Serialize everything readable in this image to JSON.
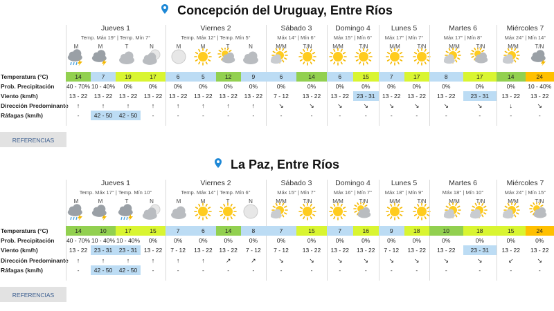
{
  "colors": {
    "cool": "#bcdcf4",
    "mild": "#92d050",
    "warm": "#d9f531",
    "hot": "#ffc000",
    "wind": "#bcdcf4"
  },
  "row_labels": {
    "temp": "Temperatura (°C)",
    "precip": "Prob. Precipitación",
    "wind": "Viento (km/h)",
    "dir": "Dirección Predominante",
    "gust": "Ráfagas (km/h)"
  },
  "references_label": "REFERENCIAS",
  "locations": [
    {
      "title": "Concepción del Uruguay, Entre Ríos",
      "days": [
        {
          "name": "Jueves 1",
          "temps": "Temp. Máx 19° | Temp. Mín 7°",
          "slots": [
            {
              "label": "M",
              "icon": "rain-storm-icon",
              "temp": "14",
              "temp_color": "mild",
              "precip": "40 - 70%",
              "wind": "13 - 22",
              "wind_hl": false,
              "dir": "↑",
              "gust": "-",
              "gust_hl": false
            },
            {
              "label": "M",
              "icon": "storm-icon",
              "temp": "7",
              "temp_color": "cool",
              "precip": "10 - 40%",
              "wind": "13 - 22",
              "wind_hl": false,
              "dir": "↑",
              "gust": "42 - 50",
              "gust_hl": true
            },
            {
              "label": "T",
              "icon": "cloudy-icon",
              "temp": "19",
              "temp_color": "warm",
              "precip": "0%",
              "wind": "13 - 22",
              "wind_hl": false,
              "dir": "↑",
              "gust": "42 - 50",
              "gust_hl": true
            },
            {
              "label": "N",
              "icon": "cloudy-night-icon",
              "temp": "17",
              "temp_color": "warm",
              "precip": "0%",
              "wind": "13 - 22",
              "wind_hl": false,
              "dir": "↑",
              "gust": "-",
              "gust_hl": false
            }
          ]
        },
        {
          "name": "Viernes 2",
          "temps": "Temp. Máx 12° | Temp. Mín 5°",
          "slots": [
            {
              "label": "M",
              "icon": "moon-icon",
              "temp": "6",
              "temp_color": "cool",
              "precip": "0%",
              "wind": "13 - 22",
              "wind_hl": false,
              "dir": "↑",
              "gust": "-",
              "gust_hl": false
            },
            {
              "label": "M",
              "icon": "sun-icon",
              "temp": "5",
              "temp_color": "cool",
              "precip": "0%",
              "wind": "13 - 22",
              "wind_hl": false,
              "dir": "↑",
              "gust": "-",
              "gust_hl": false
            },
            {
              "label": "T",
              "icon": "partly-cloudy-icon",
              "temp": "12",
              "temp_color": "mild",
              "precip": "0%",
              "wind": "13 - 22",
              "wind_hl": false,
              "dir": "↑",
              "gust": "-",
              "gust_hl": false
            },
            {
              "label": "N",
              "icon": "cloudy-icon",
              "temp": "9",
              "temp_color": "cool",
              "precip": "0%",
              "wind": "13 - 22",
              "wind_hl": false,
              "dir": "↑",
              "gust": "-",
              "gust_hl": false
            }
          ]
        },
        {
          "name": "Sábado 3",
          "temps": "Máx 14° | Mín 6°",
          "slots": [
            {
              "label": "M/M",
              "icon": "sun-cloud-icon",
              "temp": "6",
              "temp_color": "cool",
              "precip": "0%",
              "wind": "7 - 12",
              "wind_hl": false,
              "dir": "↘",
              "gust": "-",
              "gust_hl": false
            },
            {
              "label": "T/N",
              "icon": "sun-icon",
              "temp": "14",
              "temp_color": "mild",
              "precip": "0%",
              "wind": "13 - 22",
              "wind_hl": false,
              "dir": "↘",
              "gust": "-",
              "gust_hl": false
            }
          ]
        },
        {
          "name": "Domingo 4",
          "temps": "Máx 15° | Mín 6°",
          "slots": [
            {
              "label": "M/M",
              "icon": "sun-icon",
              "temp": "6",
              "temp_color": "cool",
              "precip": "0%",
              "wind": "13 - 22",
              "wind_hl": false,
              "dir": "↘",
              "gust": "-",
              "gust_hl": false
            },
            {
              "label": "T/N",
              "icon": "sun-icon",
              "temp": "15",
              "temp_color": "warm",
              "precip": "0%",
              "wind": "23 - 31",
              "wind_hl": true,
              "dir": "↘",
              "gust": "-",
              "gust_hl": false
            }
          ]
        },
        {
          "name": "Lunes 5",
          "temps": "Máx 17° | Mín 7°",
          "slots": [
            {
              "label": "M/M",
              "icon": "sun-icon",
              "temp": "7",
              "temp_color": "cool",
              "precip": "0%",
              "wind": "13 - 22",
              "wind_hl": false,
              "dir": "↘",
              "gust": "-",
              "gust_hl": false
            },
            {
              "label": "T/N",
              "icon": "sun-icon",
              "temp": "17",
              "temp_color": "warm",
              "precip": "0%",
              "wind": "13 - 22",
              "wind_hl": false,
              "dir": "↘",
              "gust": "-",
              "gust_hl": false
            }
          ]
        },
        {
          "name": "Martes 6",
          "temps": "Máx 17° | Mín 8°",
          "slots": [
            {
              "label": "M/M",
              "icon": "sun-cloud-icon",
              "temp": "8",
              "temp_color": "cool",
              "precip": "0%",
              "wind": "13 - 22",
              "wind_hl": false,
              "dir": "↘",
              "gust": "-",
              "gust_hl": false
            },
            {
              "label": "T/N",
              "icon": "partly-cloudy-icon",
              "temp": "17",
              "temp_color": "warm",
              "precip": "0%",
              "wind": "23 - 31",
              "wind_hl": true,
              "dir": "↘",
              "gust": "-",
              "gust_hl": false
            }
          ]
        },
        {
          "name": "Miércoles 7",
          "temps": "Máx 24° | Mín 14°",
          "slots": [
            {
              "label": "M/M",
              "icon": "sun-cloud-icon",
              "temp": "14",
              "temp_color": "mild",
              "precip": "0%",
              "wind": "13 - 22",
              "wind_hl": false,
              "dir": "↓",
              "gust": "-",
              "gust_hl": false
            },
            {
              "label": "T/N",
              "icon": "storm-icon",
              "temp": "24",
              "temp_color": "hot",
              "precip": "10 - 40%",
              "wind": "13 - 22",
              "wind_hl": false,
              "dir": "↘",
              "gust": "-",
              "gust_hl": false
            }
          ]
        }
      ]
    },
    {
      "title": "La Paz, Entre Ríos",
      "days": [
        {
          "name": "Jueves 1",
          "temps": "Temp. Máx 17° | Temp. Mín 10°",
          "slots": [
            {
              "label": "M",
              "icon": "rain-storm-icon",
              "temp": "14",
              "temp_color": "mild",
              "precip": "40 - 70%",
              "wind": "13 - 22",
              "wind_hl": false,
              "dir": "↑",
              "gust": "-",
              "gust_hl": false
            },
            {
              "label": "M",
              "icon": "storm-icon",
              "temp": "10",
              "temp_color": "mild",
              "precip": "10 - 40%",
              "wind": "23 - 31",
              "wind_hl": true,
              "dir": "↑",
              "gust": "42 - 50",
              "gust_hl": true
            },
            {
              "label": "T",
              "icon": "rain-storm-icon",
              "temp": "17",
              "temp_color": "warm",
              "precip": "10 - 40%",
              "wind": "23 - 31",
              "wind_hl": true,
              "dir": "↑",
              "gust": "42 - 50",
              "gust_hl": true
            },
            {
              "label": "N",
              "icon": "cloudy-night-icon",
              "temp": "15",
              "temp_color": "warm",
              "precip": "0%",
              "wind": "13 - 22",
              "wind_hl": false,
              "dir": "↑",
              "gust": "-",
              "gust_hl": false
            }
          ]
        },
        {
          "name": "Viernes 2",
          "temps": "Temp. Máx 14° | Temp. Mín 6°",
          "slots": [
            {
              "label": "M",
              "icon": "cloudy-icon",
              "temp": "7",
              "temp_color": "cool",
              "precip": "0%",
              "wind": "7 - 12",
              "wind_hl": false,
              "dir": "↑",
              "gust": "-",
              "gust_hl": false
            },
            {
              "label": "M",
              "icon": "sun-icon",
              "temp": "6",
              "temp_color": "cool",
              "precip": "0%",
              "wind": "13 - 22",
              "wind_hl": false,
              "dir": "↑",
              "gust": "-",
              "gust_hl": false
            },
            {
              "label": "T",
              "icon": "sun-icon",
              "temp": "14",
              "temp_color": "mild",
              "precip": "0%",
              "wind": "13 - 22",
              "wind_hl": false,
              "dir": "↗",
              "gust": "-",
              "gust_hl": false
            },
            {
              "label": "N",
              "icon": "moon-icon",
              "temp": "8",
              "temp_color": "cool",
              "precip": "0%",
              "wind": "7 - 12",
              "wind_hl": false,
              "dir": "↗",
              "gust": "-",
              "gust_hl": false
            }
          ]
        },
        {
          "name": "Sábado 3",
          "temps": "Máx 15° | Mín 7°",
          "slots": [
            {
              "label": "M/M",
              "icon": "sun-cloud-icon",
              "temp": "7",
              "temp_color": "cool",
              "precip": "0%",
              "wind": "7 - 12",
              "wind_hl": false,
              "dir": "↘",
              "gust": "-",
              "gust_hl": false
            },
            {
              "label": "T/N",
              "icon": "sun-icon",
              "temp": "15",
              "temp_color": "warm",
              "precip": "0%",
              "wind": "13 - 22",
              "wind_hl": false,
              "dir": "↘",
              "gust": "-",
              "gust_hl": false
            }
          ]
        },
        {
          "name": "Domingo 4",
          "temps": "Máx 16° | Mín 7°",
          "slots": [
            {
              "label": "M/M",
              "icon": "sun-icon",
              "temp": "7",
              "temp_color": "cool",
              "precip": "0%",
              "wind": "13 - 22",
              "wind_hl": false,
              "dir": "↘",
              "gust": "-",
              "gust_hl": false
            },
            {
              "label": "T/N",
              "icon": "partly-cloudy-icon",
              "temp": "16",
              "temp_color": "warm",
              "precip": "0%",
              "wind": "13 - 22",
              "wind_hl": false,
              "dir": "↘",
              "gust": "-",
              "gust_hl": false
            }
          ]
        },
        {
          "name": "Lunes 5",
          "temps": "Máx 18° | Mín 9°",
          "slots": [
            {
              "label": "M/M",
              "icon": "sun-icon",
              "temp": "9",
              "temp_color": "cool",
              "precip": "0%",
              "wind": "7 - 12",
              "wind_hl": false,
              "dir": "↘",
              "gust": "-",
              "gust_hl": false
            },
            {
              "label": "T/N",
              "icon": "sun-icon",
              "temp": "18",
              "temp_color": "warm",
              "precip": "0%",
              "wind": "13 - 22",
              "wind_hl": false,
              "dir": "↘",
              "gust": "-",
              "gust_hl": false
            }
          ]
        },
        {
          "name": "Martes 6",
          "temps": "Máx 18° | Mín 10°",
          "slots": [
            {
              "label": "M/M",
              "icon": "sun-cloud-icon",
              "temp": "10",
              "temp_color": "mild",
              "precip": "0%",
              "wind": "13 - 22",
              "wind_hl": false,
              "dir": "↘",
              "gust": "-",
              "gust_hl": false
            },
            {
              "label": "T/N",
              "icon": "sun-cloud-icon",
              "temp": "18",
              "temp_color": "warm",
              "precip": "0%",
              "wind": "23 - 31",
              "wind_hl": true,
              "dir": "↘",
              "gust": "-",
              "gust_hl": false
            }
          ]
        },
        {
          "name": "Miércoles 7",
          "temps": "Máx 24° | Mín 15°",
          "slots": [
            {
              "label": "M/M",
              "icon": "sun-cloud-icon",
              "temp": "15",
              "temp_color": "warm",
              "precip": "0%",
              "wind": "13 - 22",
              "wind_hl": false,
              "dir": "↙",
              "gust": "-",
              "gust_hl": false
            },
            {
              "label": "T/N",
              "icon": "partly-cloudy-icon",
              "temp": "24",
              "temp_color": "hot",
              "precip": "0%",
              "wind": "13 - 22",
              "wind_hl": false,
              "dir": "↘",
              "gust": "-",
              "gust_hl": false
            }
          ]
        }
      ]
    }
  ]
}
